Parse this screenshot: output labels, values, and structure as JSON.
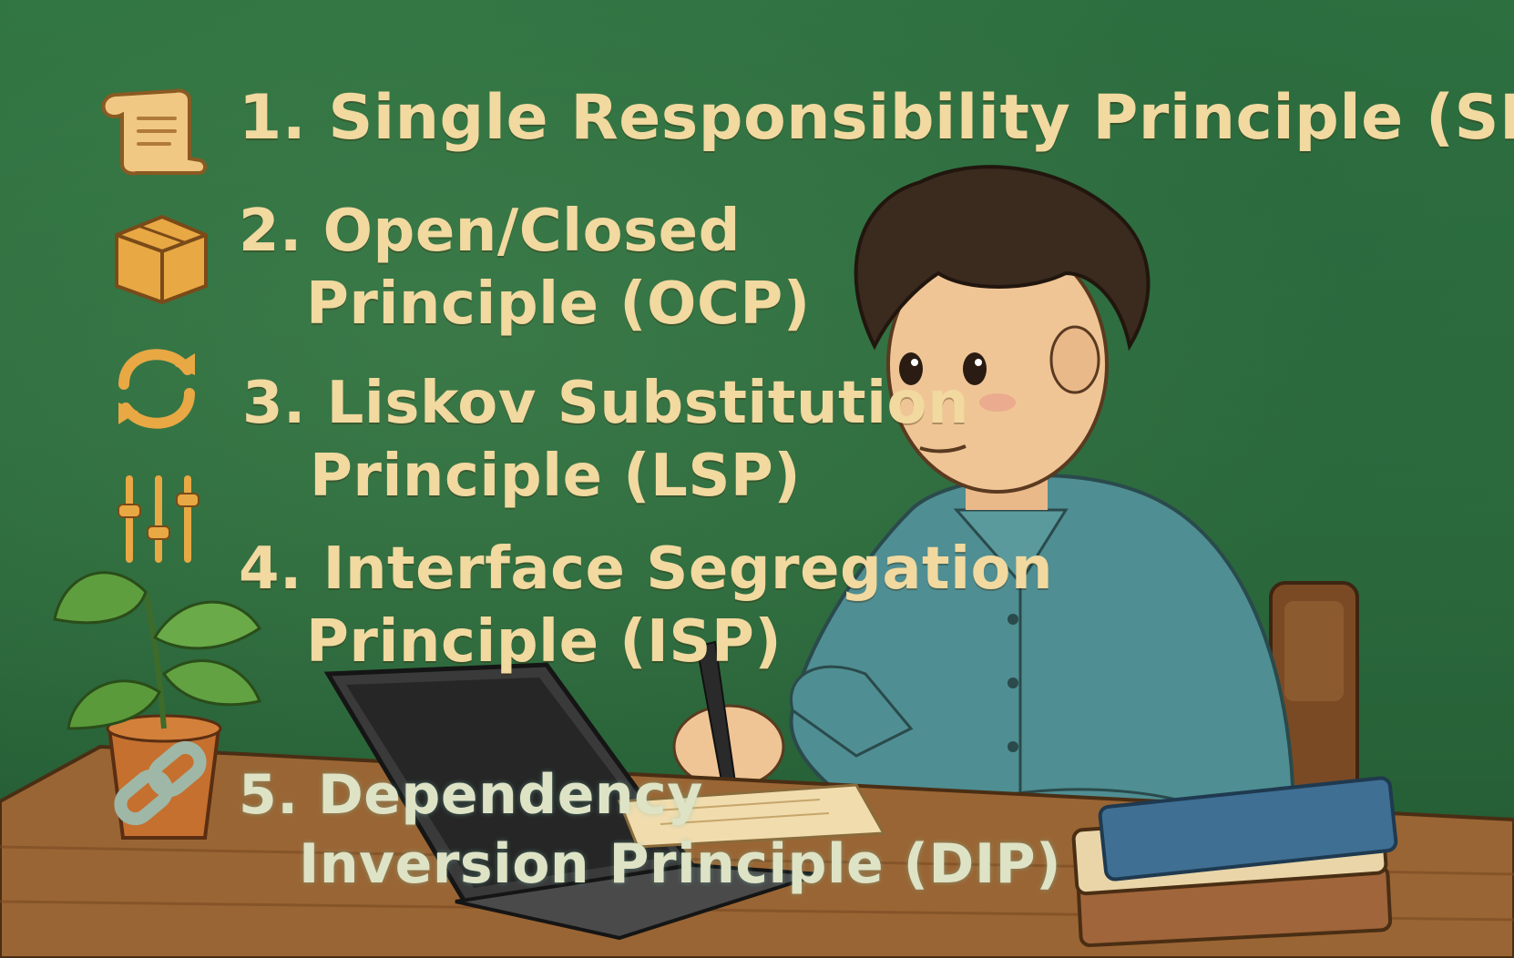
{
  "principles": [
    {
      "number": "1.",
      "lines": [
        "Single Responsibility Principle (SRP)"
      ],
      "icon": "scroll-icon"
    },
    {
      "number": "2.",
      "lines": [
        "Open/Closed",
        "Principle (OCP)"
      ],
      "icon": "box-icon"
    },
    {
      "number": "3.",
      "lines": [
        "Liskov Substitution",
        "Principle (LSP)"
      ],
      "icon": "cycle-arrows-icon"
    },
    {
      "number": "4.",
      "lines": [
        "Interface Segregation",
        "Principle (ISP)"
      ],
      "icon": "sliders-icon"
    },
    {
      "number": "5.",
      "lines": [
        "Dependency",
        "Inversion Principle (DIP)"
      ],
      "icon": "chain-link-icon"
    }
  ],
  "colors": {
    "chalkboard": "#2e6b3c",
    "text": "#f1d9a0",
    "icon": "#e8a844",
    "desk": "#9a6534",
    "shirt": "#4f8e92",
    "hair": "#3b2a1e"
  }
}
